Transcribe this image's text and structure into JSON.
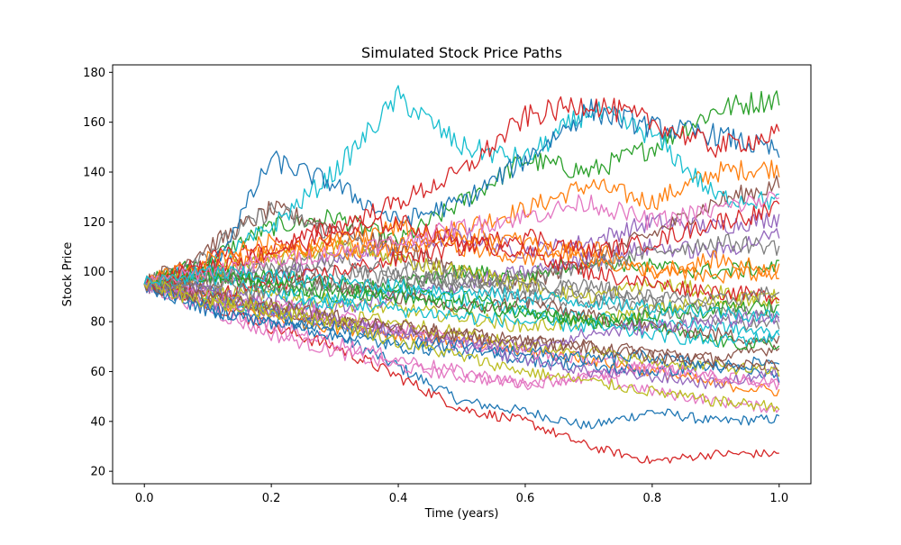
{
  "chart_data": {
    "type": "line",
    "title": "Simulated Stock Price Paths",
    "xlabel": "Time (years)",
    "ylabel": "Stock Price",
    "xlim": [
      -0.05,
      1.05
    ],
    "ylim": [
      15,
      183
    ],
    "xticks": [
      0.0,
      0.2,
      0.4,
      0.6,
      0.8,
      1.0
    ],
    "xtick_labels": [
      "0.0",
      "0.2",
      "0.4",
      "0.6",
      "0.8",
      "1.0"
    ],
    "yticks": [
      20,
      40,
      60,
      80,
      100,
      120,
      140,
      160,
      180
    ],
    "ytick_labels": [
      "20",
      "40",
      "60",
      "80",
      "100",
      "120",
      "140",
      "160",
      "180"
    ],
    "grid": false,
    "legend": "none",
    "start_value": 95,
    "colors": [
      "#1f77b4",
      "#ff7f0e",
      "#2ca02c",
      "#d62728",
      "#9467bd",
      "#8c564b",
      "#e377c2",
      "#7f7f7f",
      "#bcbd22",
      "#17becf"
    ],
    "series": [
      {
        "x": [
          0.0,
          0.1,
          0.2,
          0.3,
          0.4,
          0.5,
          0.6,
          0.7,
          0.8,
          0.9,
          1.0
        ],
        "values": [
          95,
          92,
          84,
          75,
          62,
          48,
          44,
          38,
          44,
          40,
          41
        ]
      },
      {
        "x": [
          0.0,
          0.1,
          0.2,
          0.3,
          0.4,
          0.5,
          0.6,
          0.7,
          0.8,
          0.9,
          1.0
        ],
        "values": [
          95,
          100,
          105,
          112,
          108,
          118,
          125,
          135,
          128,
          140,
          142
        ]
      },
      {
        "x": [
          0.0,
          0.1,
          0.2,
          0.3,
          0.4,
          0.5,
          0.6,
          0.7,
          0.8,
          0.9,
          1.0
        ],
        "values": [
          95,
          105,
          118,
          122,
          112,
          128,
          145,
          140,
          150,
          165,
          170
        ]
      },
      {
        "x": [
          0.0,
          0.1,
          0.2,
          0.3,
          0.4,
          0.5,
          0.6,
          0.7,
          0.8,
          0.9,
          1.0
        ],
        "values": [
          95,
          88,
          78,
          70,
          58,
          45,
          40,
          30,
          24,
          27,
          27
        ]
      },
      {
        "x": [
          0.0,
          0.1,
          0.2,
          0.3,
          0.4,
          0.5,
          0.6,
          0.7,
          0.8,
          0.9,
          1.0
        ],
        "values": [
          95,
          100,
          98,
          105,
          110,
          115,
          108,
          112,
          120,
          118,
          122
        ]
      },
      {
        "x": [
          0.0,
          0.1,
          0.2,
          0.3,
          0.4,
          0.5,
          0.6,
          0.7,
          0.8,
          0.9,
          1.0
        ],
        "values": [
          95,
          110,
          125,
          118,
          110,
          100,
          95,
          105,
          115,
          128,
          135
        ]
      },
      {
        "x": [
          0.0,
          0.1,
          0.2,
          0.3,
          0.4,
          0.5,
          0.6,
          0.7,
          0.8,
          0.9,
          1.0
        ],
        "values": [
          95,
          85,
          75,
          68,
          62,
          58,
          55,
          58,
          52,
          48,
          45
        ]
      },
      {
        "x": [
          0.0,
          0.1,
          0.2,
          0.3,
          0.4,
          0.5,
          0.6,
          0.7,
          0.8,
          0.9,
          1.0
        ],
        "values": [
          95,
          108,
          125,
          115,
          105,
          98,
          92,
          95,
          88,
          85,
          84
        ]
      },
      {
        "x": [
          0.0,
          0.1,
          0.2,
          0.3,
          0.4,
          0.5,
          0.6,
          0.7,
          0.8,
          0.9,
          1.0
        ],
        "values": [
          95,
          92,
          90,
          88,
          85,
          82,
          78,
          80,
          85,
          88,
          90
        ]
      },
      {
        "x": [
          0.0,
          0.1,
          0.2,
          0.3,
          0.4,
          0.5,
          0.6,
          0.7,
          0.8,
          0.9,
          1.0
        ],
        "values": [
          95,
          102,
          118,
          140,
          170,
          150,
          145,
          165,
          155,
          130,
          128
        ]
      },
      {
        "x": [
          0.0,
          0.1,
          0.2,
          0.3,
          0.4,
          0.5,
          0.6,
          0.7,
          0.8,
          0.9,
          1.0
        ],
        "values": [
          95,
          98,
          145,
          135,
          120,
          128,
          145,
          165,
          158,
          155,
          148
        ]
      },
      {
        "x": [
          0.0,
          0.1,
          0.2,
          0.3,
          0.4,
          0.5,
          0.6,
          0.7,
          0.8,
          0.9,
          1.0
        ],
        "values": [
          95,
          88,
          82,
          78,
          75,
          72,
          68,
          65,
          60,
          55,
          52
        ]
      },
      {
        "x": [
          0.0,
          0.1,
          0.2,
          0.3,
          0.4,
          0.5,
          0.6,
          0.7,
          0.8,
          0.9,
          1.0
        ],
        "values": [
          95,
          100,
          95,
          90,
          95,
          100,
          98,
          105,
          102,
          100,
          102
        ]
      },
      {
        "x": [
          0.0,
          0.1,
          0.2,
          0.3,
          0.4,
          0.5,
          0.6,
          0.7,
          0.8,
          0.9,
          1.0
        ],
        "values": [
          95,
          105,
          110,
          118,
          128,
          140,
          162,
          168,
          160,
          150,
          155
        ]
      },
      {
        "x": [
          0.0,
          0.1,
          0.2,
          0.3,
          0.4,
          0.5,
          0.6,
          0.7,
          0.8,
          0.9,
          1.0
        ],
        "values": [
          95,
          92,
          88,
          85,
          90,
          95,
          100,
          105,
          110,
          108,
          115
        ]
      },
      {
        "x": [
          0.0,
          0.1,
          0.2,
          0.3,
          0.4,
          0.5,
          0.6,
          0.7,
          0.8,
          0.9,
          1.0
        ],
        "values": [
          95,
          90,
          85,
          80,
          78,
          75,
          72,
          70,
          68,
          65,
          70
        ]
      },
      {
        "x": [
          0.0,
          0.1,
          0.2,
          0.3,
          0.4,
          0.5,
          0.6,
          0.7,
          0.8,
          0.9,
          1.0
        ],
        "values": [
          95,
          88,
          78,
          72,
          65,
          60,
          55,
          58,
          62,
          58,
          55
        ]
      },
      {
        "x": [
          0.0,
          0.1,
          0.2,
          0.3,
          0.4,
          0.5,
          0.6,
          0.7,
          0.8,
          0.9,
          1.0
        ],
        "values": [
          95,
          98,
          102,
          100,
          98,
          95,
          90,
          88,
          85,
          80,
          78
        ]
      },
      {
        "x": [
          0.0,
          0.1,
          0.2,
          0.3,
          0.4,
          0.5,
          0.6,
          0.7,
          0.8,
          0.9,
          1.0
        ],
        "values": [
          95,
          100,
          105,
          110,
          105,
          100,
          95,
          90,
          95,
          92,
          88
        ]
      },
      {
        "x": [
          0.0,
          0.1,
          0.2,
          0.3,
          0.4,
          0.5,
          0.6,
          0.7,
          0.8,
          0.9,
          1.0
        ],
        "values": [
          95,
          90,
          85,
          88,
          92,
          88,
          85,
          82,
          80,
          78,
          75
        ]
      },
      {
        "x": [
          0.0,
          0.1,
          0.2,
          0.3,
          0.4,
          0.5,
          0.6,
          0.7,
          0.8,
          0.9,
          1.0
        ],
        "values": [
          95,
          85,
          80,
          75,
          70,
          68,
          65,
          62,
          60,
          62,
          58
        ]
      },
      {
        "x": [
          0.0,
          0.1,
          0.2,
          0.3,
          0.4,
          0.5,
          0.6,
          0.7,
          0.8,
          0.9,
          1.0
        ],
        "values": [
          95,
          100,
          108,
          112,
          118,
          110,
          105,
          110,
          100,
          105,
          100
        ]
      },
      {
        "x": [
          0.0,
          0.1,
          0.2,
          0.3,
          0.4,
          0.5,
          0.6,
          0.7,
          0.8,
          0.9,
          1.0
        ],
        "values": [
          95,
          102,
          98,
          95,
          92,
          90,
          85,
          80,
          78,
          72,
          70
        ]
      },
      {
        "x": [
          0.0,
          0.1,
          0.2,
          0.3,
          0.4,
          0.5,
          0.6,
          0.7,
          0.8,
          0.9,
          1.0
        ],
        "values": [
          95,
          90,
          95,
          100,
          105,
          110,
          115,
          108,
          112,
          120,
          125
        ]
      },
      {
        "x": [
          0.0,
          0.1,
          0.2,
          0.3,
          0.4,
          0.5,
          0.6,
          0.7,
          0.8,
          0.9,
          1.0
        ],
        "values": [
          95,
          88,
          85,
          80,
          75,
          70,
          65,
          60,
          58,
          55,
          60
        ]
      },
      {
        "x": [
          0.0,
          0.1,
          0.2,
          0.3,
          0.4,
          0.5,
          0.6,
          0.7,
          0.8,
          0.9,
          1.0
        ],
        "values": [
          95,
          95,
          98,
          95,
          90,
          85,
          88,
          82,
          78,
          75,
          72
        ]
      },
      {
        "x": [
          0.0,
          0.1,
          0.2,
          0.3,
          0.4,
          0.5,
          0.6,
          0.7,
          0.8,
          0.9,
          1.0
        ],
        "values": [
          95,
          92,
          88,
          82,
          78,
          72,
          68,
          65,
          62,
          58,
          55
        ]
      },
      {
        "x": [
          0.0,
          0.1,
          0.2,
          0.3,
          0.4,
          0.5,
          0.6,
          0.7,
          0.8,
          0.9,
          1.0
        ],
        "values": [
          95,
          100,
          102,
          105,
          100,
          95,
          98,
          102,
          108,
          112,
          110
        ]
      },
      {
        "x": [
          0.0,
          0.1,
          0.2,
          0.3,
          0.4,
          0.5,
          0.6,
          0.7,
          0.8,
          0.9,
          1.0
        ],
        "values": [
          95,
          90,
          85,
          82,
          80,
          75,
          70,
          68,
          64,
          62,
          60
        ]
      },
      {
        "x": [
          0.0,
          0.1,
          0.2,
          0.3,
          0.4,
          0.5,
          0.6,
          0.7,
          0.8,
          0.9,
          1.0
        ],
        "values": [
          95,
          98,
          92,
          88,
          85,
          82,
          80,
          78,
          75,
          72,
          74
        ]
      },
      {
        "x": [
          0.0,
          0.1,
          0.2,
          0.3,
          0.4,
          0.5,
          0.6,
          0.7,
          0.8,
          0.9,
          1.0
        ],
        "values": [
          95,
          85,
          80,
          78,
          72,
          70,
          68,
          65,
          66,
          62,
          64
        ]
      },
      {
        "x": [
          0.0,
          0.1,
          0.2,
          0.3,
          0.4,
          0.5,
          0.6,
          0.7,
          0.8,
          0.9,
          1.0
        ],
        "values": [
          95,
          105,
          112,
          108,
          110,
          115,
          112,
          105,
          100,
          98,
          100
        ]
      },
      {
        "x": [
          0.0,
          0.1,
          0.2,
          0.3,
          0.4,
          0.5,
          0.6,
          0.7,
          0.8,
          0.9,
          1.0
        ],
        "values": [
          95,
          98,
          95,
          92,
          90,
          86,
          84,
          80,
          82,
          85,
          86
        ]
      },
      {
        "x": [
          0.0,
          0.1,
          0.2,
          0.3,
          0.4,
          0.5,
          0.6,
          0.7,
          0.8,
          0.9,
          1.0
        ],
        "values": [
          95,
          102,
          108,
          115,
          120,
          112,
          108,
          100,
          95,
          92,
          90
        ]
      },
      {
        "x": [
          0.0,
          0.1,
          0.2,
          0.3,
          0.4,
          0.5,
          0.6,
          0.7,
          0.8,
          0.9,
          1.0
        ],
        "values": [
          95,
          92,
          85,
          80,
          76,
          72,
          70,
          75,
          78,
          80,
          82
        ]
      },
      {
        "x": [
          0.0,
          0.1,
          0.2,
          0.3,
          0.4,
          0.5,
          0.6,
          0.7,
          0.8,
          0.9,
          1.0
        ],
        "values": [
          95,
          90,
          86,
          82,
          78,
          74,
          72,
          70,
          66,
          64,
          62
        ]
      },
      {
        "x": [
          0.0,
          0.1,
          0.2,
          0.3,
          0.4,
          0.5,
          0.6,
          0.7,
          0.8,
          0.9,
          1.0
        ],
        "values": [
          95,
          100,
          104,
          108,
          112,
          118,
          122,
          128,
          120,
          125,
          130
        ]
      },
      {
        "x": [
          0.0,
          0.1,
          0.2,
          0.3,
          0.4,
          0.5,
          0.6,
          0.7,
          0.8,
          0.9,
          1.0
        ],
        "values": [
          95,
          95,
          92,
          94,
          96,
          98,
          95,
          92,
          90,
          88,
          92
        ]
      },
      {
        "x": [
          0.0,
          0.1,
          0.2,
          0.3,
          0.4,
          0.5,
          0.6,
          0.7,
          0.8,
          0.9,
          1.0
        ],
        "values": [
          95,
          88,
          84,
          80,
          72,
          66,
          60,
          56,
          52,
          48,
          46
        ]
      },
      {
        "x": [
          0.0,
          0.1,
          0.2,
          0.3,
          0.4,
          0.5,
          0.6,
          0.7,
          0.8,
          0.9,
          1.0
        ],
        "values": [
          95,
          100,
          98,
          96,
          94,
          92,
          90,
          88,
          86,
          84,
          82
        ]
      }
    ]
  }
}
